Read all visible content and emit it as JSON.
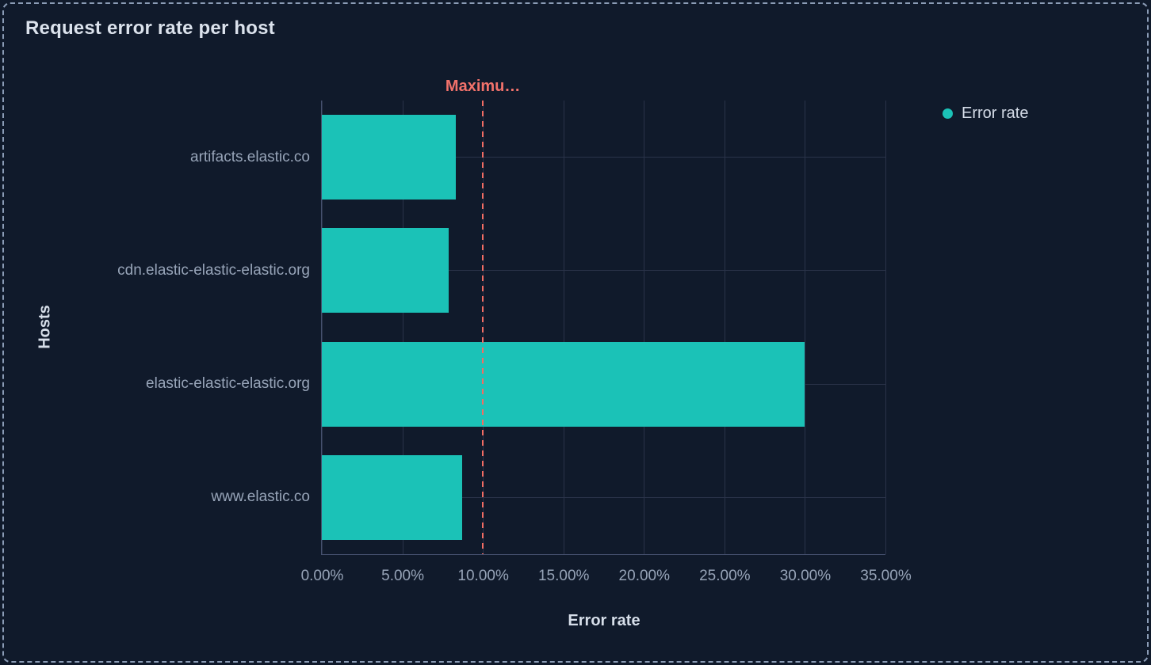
{
  "panel": {
    "title": "Request error rate per host"
  },
  "legend": {
    "items": [
      {
        "label": "Error rate",
        "color": "#1bc2b7"
      }
    ]
  },
  "chart_data": {
    "type": "bar",
    "orientation": "horizontal",
    "title": "Request error rate per host",
    "categories": [
      "artifacts.elastic.co",
      "cdn.elastic-elastic-elastic.org",
      "elastic-elastic-elastic.org",
      "www.elastic.co"
    ],
    "series": [
      {
        "name": "Error rate",
        "values": [
          8.3,
          7.9,
          30.0,
          8.7
        ]
      }
    ],
    "xlabel": "Error rate",
    "ylabel": "Hosts",
    "xlim": [
      0,
      35
    ],
    "x_tick_values": [
      0,
      5,
      10,
      15,
      20,
      25,
      30,
      35
    ],
    "x_tick_labels": [
      "0.00%",
      "5.00%",
      "10.00%",
      "15.00%",
      "20.00%",
      "25.00%",
      "30.00%",
      "35.00%"
    ],
    "grid": true,
    "legend_position": "top-right",
    "annotation": {
      "type": "vertical-threshold-line",
      "value": 10,
      "label": "Maximu…",
      "style": "dashed",
      "color": "#f26d64"
    }
  },
  "colors": {
    "background": "#101a2b",
    "panel_border": "#8b9cb6",
    "series_teal": "#1bc2b7",
    "annotation_red": "#f26d64",
    "gridline": "#2a3349",
    "axis_line": "#45506e",
    "tick_text": "#97a4b8",
    "title_text": "#dbe2ec"
  }
}
